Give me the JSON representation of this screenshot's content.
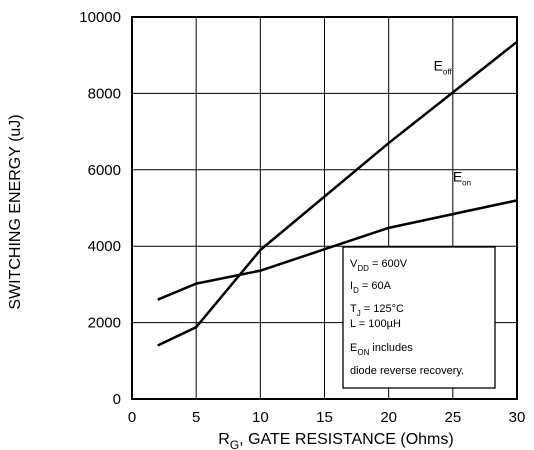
{
  "chart_data": {
    "type": "line",
    "xlabel": {
      "main": "R",
      "sub": "G",
      "rest": ", GATE RESISTANCE (Ohms)"
    },
    "ylabel": "SWITCHING ENERGY (uJ)",
    "xlim": [
      0,
      30
    ],
    "ylim": [
      0,
      10000
    ],
    "xticks": [
      0,
      5,
      10,
      15,
      20,
      25,
      30
    ],
    "yticks": [
      0,
      2000,
      4000,
      6000,
      8000,
      10000
    ],
    "grid": true,
    "series": [
      {
        "name": {
          "main": "E",
          "sub": "off"
        },
        "x": [
          2,
          5,
          10,
          20,
          30
        ],
        "y": [
          1400,
          1880,
          3900,
          6700,
          9350
        ]
      },
      {
        "name": {
          "main": "E",
          "sub": "on"
        },
        "x": [
          2,
          5,
          10,
          20,
          30
        ],
        "y": [
          2600,
          3020,
          3360,
          4480,
          5200
        ]
      }
    ],
    "series_label_positions": {
      "E_off": {
        "x": 23.5,
        "y": 8600
      },
      "E_on": {
        "x": 25,
        "y": 5700
      }
    },
    "conditions": [
      {
        "main": "V",
        "sub": "DD",
        "rest": " = 600V"
      },
      {
        "main": "I",
        "sub": "D",
        "rest": " = 60A"
      },
      {
        "main": "T",
        "sub": "J",
        "rest": " = 125°C"
      },
      {
        "main": "L",
        "sub": "",
        "rest": " = 100µH"
      },
      {
        "main": "E",
        "sub": "ON",
        "rest": " includes"
      },
      {
        "main": "diode reverse recovery.",
        "sub": "",
        "rest": ""
      }
    ]
  }
}
